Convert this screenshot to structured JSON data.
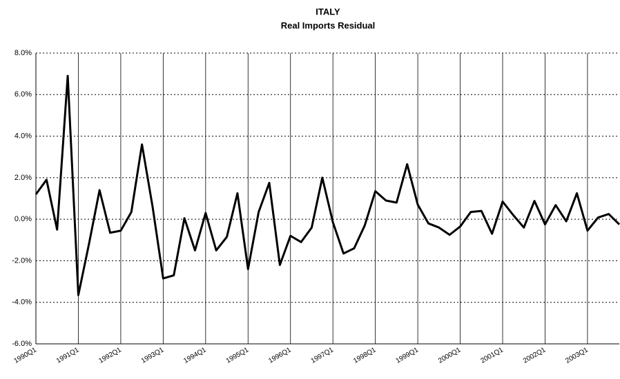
{
  "chart_data": {
    "type": "line",
    "title": "ITALY",
    "subtitle": "Real Imports Residual",
    "categories": [
      "1990Q1",
      null,
      null,
      null,
      "1991Q1",
      null,
      null,
      null,
      "1992Q1",
      null,
      null,
      null,
      "1993Q1",
      null,
      null,
      null,
      "1994Q1",
      null,
      null,
      null,
      "1995Q1",
      null,
      null,
      null,
      "1996Q1",
      null,
      null,
      null,
      "1997Q1",
      null,
      null,
      null,
      "1998Q1",
      null,
      null,
      null,
      "1999Q1",
      null,
      null,
      null,
      "2000Q1",
      null,
      null,
      null,
      "2001Q1",
      null,
      null,
      null,
      "2002Q1",
      null,
      null,
      null,
      "2003Q1",
      null,
      null,
      null
    ],
    "series": [
      {
        "name": "Real Imports Residual",
        "color": "#000000",
        "values": [
          1.2,
          1.9,
          -0.5,
          6.9,
          -3.65,
          -1.2,
          1.4,
          -0.65,
          -0.55,
          0.35,
          3.6,
          0.6,
          -2.85,
          -2.7,
          0.05,
          -1.5,
          0.3,
          -1.5,
          -0.85,
          1.25,
          -2.4,
          0.35,
          1.75,
          -2.2,
          -0.8,
          -1.1,
          -0.4,
          2.0,
          -0.15,
          -1.65,
          -1.4,
          -0.3,
          1.35,
          0.9,
          0.8,
          2.65,
          0.7,
          -0.2,
          -0.4,
          -0.75,
          -0.35,
          0.35,
          0.4,
          -0.7,
          0.85,
          0.2,
          -0.4,
          0.88,
          -0.25,
          0.68,
          -0.1,
          1.25,
          -0.55,
          0.08,
          0.25,
          -0.25
        ]
      }
    ],
    "ylim": [
      -6,
      8
    ],
    "yticks": [
      {
        "value": -6,
        "label": "-6.0%"
      },
      {
        "value": -4,
        "label": "-4.0%"
      },
      {
        "value": -2,
        "label": "-2.0%"
      },
      {
        "value": 0,
        "label": "0.0%"
      },
      {
        "value": 2,
        "label": "2.0%"
      },
      {
        "value": 4,
        "label": "4.0%"
      },
      {
        "value": 6,
        "label": "6.0%"
      },
      {
        "value": 8,
        "label": "8.0%"
      }
    ],
    "grid": true
  }
}
